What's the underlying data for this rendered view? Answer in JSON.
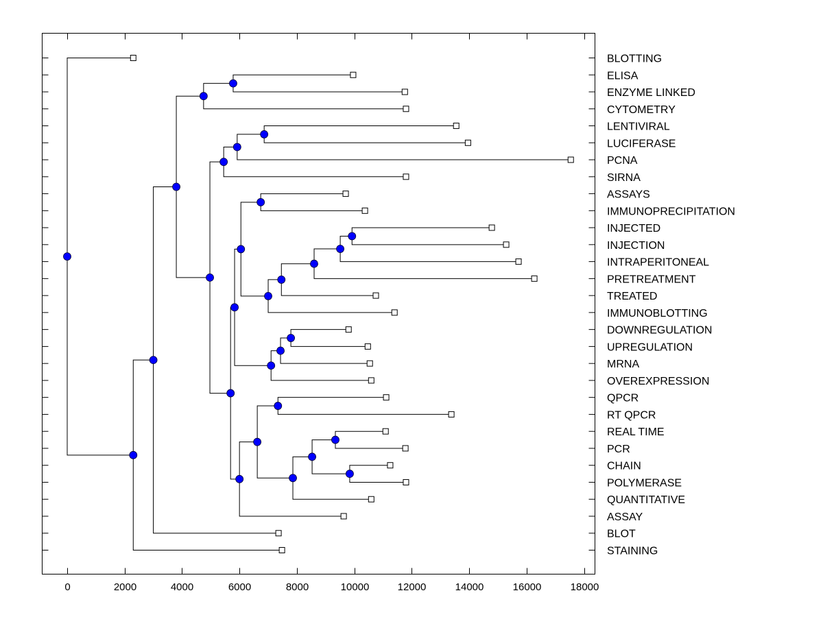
{
  "chart_data": {
    "type": "dendrogram",
    "title": "",
    "xlabel": "",
    "ylabel": "",
    "xlim": [
      -900,
      18400
    ],
    "x_ticks": [
      0,
      2000,
      4000,
      6000,
      8000,
      10000,
      12000,
      14000,
      16000,
      18000
    ],
    "x_tick_labels": [
      "0",
      "2000",
      "4000",
      "6000",
      "8000",
      "10000",
      "12000",
      "14000",
      "16000",
      "18000"
    ],
    "grid": false,
    "leaf_label_position": "right",
    "colors": {
      "node_fill": "#0000ff",
      "node_stroke": "#000033",
      "leaf_fill": "#ffffff",
      "line": "#000000"
    },
    "leaves": [
      {
        "label": "BLOTTING",
        "x": 2300
      },
      {
        "label": "ELISA",
        "x": 9960
      },
      {
        "label": "ENZYME LINKED",
        "x": 11760
      },
      {
        "label": "CYTOMETRY",
        "x": 11800
      },
      {
        "label": "LENTIVIRAL",
        "x": 13550
      },
      {
        "label": "LUCIFERASE",
        "x": 13960
      },
      {
        "label": "PCNA",
        "x": 17540
      },
      {
        "label": "SIRNA",
        "x": 11800
      },
      {
        "label": "ASSAYS",
        "x": 9700
      },
      {
        "label": "IMMUNOPRECIPITATION",
        "x": 10370
      },
      {
        "label": "INJECTED",
        "x": 14790
      },
      {
        "label": "INJECTION",
        "x": 15290
      },
      {
        "label": "INTRAPERITONEAL",
        "x": 15720
      },
      {
        "label": "PRETREATMENT",
        "x": 16270
      },
      {
        "label": "TREATED",
        "x": 10750
      },
      {
        "label": "IMMUNOBLOTTING",
        "x": 11400
      },
      {
        "label": "DOWNREGULATION",
        "x": 9800
      },
      {
        "label": "UPREGULATION",
        "x": 10470
      },
      {
        "label": "MRNA",
        "x": 10540
      },
      {
        "label": "OVEREXPRESSION",
        "x": 10590
      },
      {
        "label": "QPCR",
        "x": 11110
      },
      {
        "label": "RT QPCR",
        "x": 13380
      },
      {
        "label": "REAL TIME",
        "x": 11090
      },
      {
        "label": "PCR",
        "x": 11780
      },
      {
        "label": "CHAIN",
        "x": 11250
      },
      {
        "label": "POLYMERASE",
        "x": 11800
      },
      {
        "label": "QUANTITATIVE",
        "x": 10590
      },
      {
        "label": "ASSAY",
        "x": 9630
      },
      {
        "label": "BLOT",
        "x": 7360
      },
      {
        "label": "STAINING",
        "x": 7480
      }
    ],
    "tree": {
      "x": 0,
      "children": [
        {
          "leaf": 0
        },
        {
          "x": 2300,
          "children": [
            {
              "x": 3000,
              "children": [
                {
                  "x": 3800,
                  "children": [
                    {
                      "x": 4750,
                      "children": [
                        {
                          "x": 5780,
                          "children": [
                            {
                              "leaf": 1
                            },
                            {
                              "leaf": 2
                            }
                          ]
                        },
                        {
                          "leaf": 3
                        }
                      ]
                    },
                    {
                      "x": 4970,
                      "children": [
                        {
                          "x": 5450,
                          "children": [
                            {
                              "x": 5920,
                              "children": [
                                {
                                  "x": 6860,
                                  "children": [
                                    {
                                      "leaf": 4
                                    },
                                    {
                                      "leaf": 5
                                    }
                                  ]
                                },
                                {
                                  "leaf": 6
                                }
                              ]
                            },
                            {
                              "leaf": 7
                            }
                          ]
                        },
                        {
                          "x": 5690,
                          "children": [
                            {
                              "x": 5830,
                              "children": [
                                {
                                  "x": 6050,
                                  "children": [
                                    {
                                      "x": 6740,
                                      "children": [
                                        {
                                          "leaf": 8
                                        },
                                        {
                                          "leaf": 9
                                        }
                                      ]
                                    },
                                    {
                                      "x": 7000,
                                      "children": [
                                        {
                                          "x": 7460,
                                          "children": [
                                            {
                                              "x": 8600,
                                              "children": [
                                                {
                                                  "x": 9510,
                                                  "children": [
                                                    {
                                                      "x": 9920,
                                                      "children": [
                                                        {
                                                          "leaf": 10
                                                        },
                                                        {
                                                          "leaf": 11
                                                        }
                                                      ]
                                                    },
                                                    {
                                                      "leaf": 12
                                                    }
                                                  ]
                                                },
                                                {
                                                  "leaf": 13
                                                }
                                              ]
                                            },
                                            {
                                              "leaf": 14
                                            }
                                          ]
                                        },
                                        {
                                          "leaf": 15
                                        }
                                      ]
                                    }
                                  ]
                                },
                                {
                                  "x": 7100,
                                  "children": [
                                    {
                                      "x": 7430,
                                      "children": [
                                        {
                                          "x": 7790,
                                          "children": [
                                            {
                                              "leaf": 16
                                            },
                                            {
                                              "leaf": 17
                                            }
                                          ]
                                        },
                                        {
                                          "leaf": 18
                                        }
                                      ]
                                    },
                                    {
                                      "leaf": 19
                                    }
                                  ]
                                }
                              ]
                            },
                            {
                              "x": 6000,
                              "children": [
                                {
                                  "x": 6620,
                                  "children": [
                                    {
                                      "x": 7340,
                                      "children": [
                                        {
                                          "leaf": 20
                                        },
                                        {
                                          "leaf": 21
                                        }
                                      ]
                                    },
                                    {
                                      "x": 7860,
                                      "children": [
                                        {
                                          "x": 8530,
                                          "children": [
                                            {
                                              "x": 9340,
                                              "children": [
                                                {
                                                  "leaf": 22
                                                },
                                                {
                                                  "leaf": 23
                                                }
                                              ]
                                            },
                                            {
                                              "x": 9840,
                                              "children": [
                                                {
                                                  "leaf": 24
                                                },
                                                {
                                                  "leaf": 25
                                                }
                                              ]
                                            }
                                          ]
                                        },
                                        {
                                          "leaf": 26
                                        }
                                      ]
                                    }
                                  ]
                                },
                                {
                                  "leaf": 27
                                }
                              ]
                            }
                          ]
                        }
                      ]
                    }
                  ]
                },
                {
                  "leaf": 28
                }
              ]
            },
            {
              "leaf": 29
            }
          ]
        }
      ]
    }
  }
}
